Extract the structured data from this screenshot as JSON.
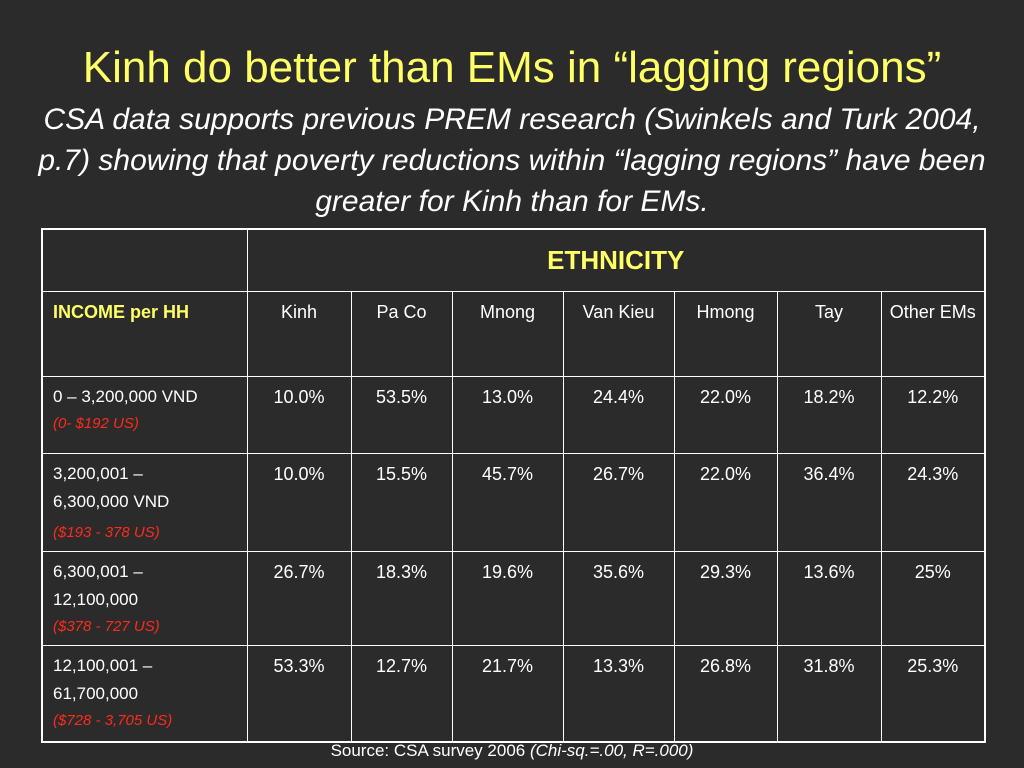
{
  "title": "Kinh do better than EMs in “lagging regions”",
  "subtitle": "CSA data supports previous PREM research (Swinkels and Turk 2004, p.7) showing that poverty reductions within “lagging regions” have been greater for Kinh than for EMs.",
  "table": {
    "group_header": "ETHNICITY",
    "income_header": "INCOME per HH",
    "columns": [
      "Kinh",
      "Pa Co",
      "Mnong",
      "Van Kieu",
      "Hmong",
      "Tay",
      "Other EMs"
    ],
    "rows": [
      {
        "label_lines": [
          "0 – 3,200,000 VND"
        ],
        "usd": "(0- $192 US)",
        "values": [
          "10.0%",
          "53.5%",
          "13.0%",
          "24.4%",
          "22.0%",
          "18.2%",
          "12.2%"
        ]
      },
      {
        "label_lines": [
          "3,200,001 –",
          "6,300,000 VND"
        ],
        "usd": " ($193 - 378 US)",
        "values": [
          "10.0%",
          "15.5%",
          "45.7%",
          "26.7%",
          "22.0%",
          "36.4%",
          "24.3%"
        ]
      },
      {
        "label_lines": [
          "6,300,001 –",
          "12,100,000"
        ],
        "usd": "($378 - 727 US)",
        "values": [
          "26.7%",
          "18.3%",
          "19.6%",
          "35.6%",
          "29.3%",
          "13.6%",
          "25%"
        ]
      },
      {
        "label_lines": [
          "12,100,001 –",
          "61,700,000"
        ],
        "usd": "($728 - 3,705 US)",
        "values": [
          "53.3%",
          "12.7%",
          "21.7%",
          "13.3%",
          "26.8%",
          "31.8%",
          "25.3%"
        ]
      }
    ],
    "highlight_color": "#ffff66"
  },
  "source": {
    "text": "Source: CSA survey 2006 ",
    "note": "(Chi-sq.=.00, R=.000)"
  },
  "colors": {
    "background": "#2b2b2b",
    "title": "#ffff66",
    "usd_text": "#ff2a1a",
    "highlight": "#ffff66"
  }
}
